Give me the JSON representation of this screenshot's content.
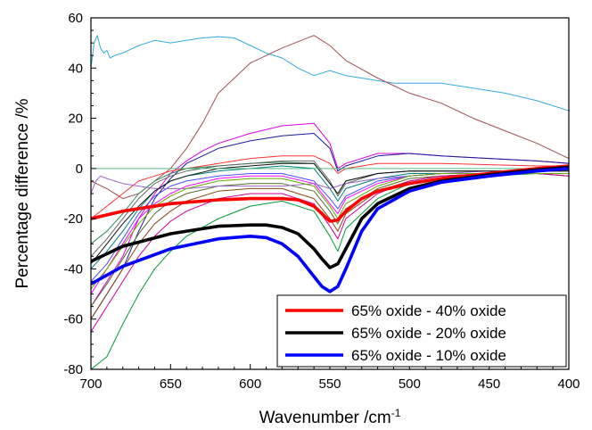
{
  "chart_data": {
    "type": "line",
    "xlabel": "Wavenumber /cm",
    "xlabel_sup": "-1",
    "ylabel": "Percentage difference /%",
    "xlim": [
      700,
      400
    ],
    "ylim": [
      -80,
      60
    ],
    "x_ticks": [
      700,
      650,
      600,
      550,
      500,
      450,
      400
    ],
    "y_ticks": [
      60,
      40,
      20,
      0,
      -20,
      -40,
      -60,
      -80
    ],
    "legend_position": "bottom-right",
    "series": [
      {
        "name": "65% oxide - 40% oxide",
        "color": "#ff0000",
        "emphasis": true,
        "x": [
          700,
          680,
          650,
          620,
          600,
          580,
          570,
          560,
          555,
          550,
          545,
          540,
          530,
          520,
          500,
          480,
          450,
          420,
          400
        ],
        "y": [
          -20,
          -17,
          -14,
          -12.5,
          -12,
          -12,
          -12.5,
          -15,
          -18,
          -21,
          -20.5,
          -17,
          -12,
          -9,
          -6,
          -4,
          -2,
          0,
          1
        ]
      },
      {
        "name": "65% oxide - 20% oxide",
        "color": "#000000",
        "emphasis": true,
        "x": [
          700,
          680,
          650,
          620,
          600,
          590,
          580,
          570,
          560,
          555,
          550,
          545,
          540,
          530,
          520,
          500,
          480,
          450,
          420,
          400
        ],
        "y": [
          -37,
          -31,
          -26,
          -23,
          -22.5,
          -22.5,
          -23.5,
          -26,
          -32,
          -36,
          -39.5,
          -38,
          -32,
          -20,
          -14,
          -8,
          -5,
          -2.5,
          -0.5,
          0.5
        ]
      },
      {
        "name": "65% oxide - 10% oxide",
        "color": "#0000ff",
        "emphasis": true,
        "x": [
          700,
          680,
          650,
          620,
          600,
          590,
          580,
          570,
          560,
          555,
          550,
          545,
          540,
          530,
          520,
          500,
          480,
          450,
          420,
          400
        ],
        "y": [
          -46,
          -39,
          -32,
          -28,
          -27,
          -27.5,
          -30,
          -35,
          -43,
          -47,
          -49,
          -47,
          -40,
          -25,
          -16,
          -9,
          -5.5,
          -3,
          -1,
          0
        ]
      },
      {
        "color": "#33aadd",
        "x": [
          700,
          698,
          696,
          694,
          692,
          690,
          688,
          685,
          680,
          670,
          660,
          650,
          640,
          630,
          620,
          610,
          600,
          590,
          580,
          570,
          560,
          550,
          540,
          530,
          520,
          510,
          500,
          490,
          480,
          470,
          460,
          450,
          440,
          420,
          400
        ],
        "y": [
          40,
          50,
          53,
          48,
          46,
          47,
          44,
          45,
          46,
          49,
          51,
          50,
          51,
          52,
          52.5,
          52,
          49,
          46,
          44,
          40,
          37,
          39,
          37,
          36,
          35,
          34,
          34,
          34,
          34,
          33,
          32,
          31,
          30,
          27,
          23
        ]
      },
      {
        "color": "#a05050",
        "x": [
          700,
          690,
          680,
          670,
          660,
          650,
          640,
          630,
          620,
          600,
          580,
          560,
          550,
          540,
          520,
          500,
          480,
          460,
          440,
          420,
          400
        ],
        "y": [
          -5,
          -8,
          -12,
          -10,
          -5,
          0,
          8,
          18,
          30,
          42,
          48,
          53,
          49,
          43,
          36,
          30,
          26,
          20,
          15,
          10,
          4
        ]
      },
      {
        "color": "#dd00dd",
        "x": [
          700,
          690,
          680,
          670,
          660,
          650,
          640,
          630,
          620,
          600,
          580,
          560,
          550,
          545,
          540,
          520,
          500,
          480,
          450,
          420,
          400
        ],
        "y": [
          -55,
          -45,
          -35,
          -20,
          -10,
          -2,
          3,
          7,
          10,
          14,
          17,
          18,
          10,
          0,
          2,
          6,
          6,
          5,
          4,
          3,
          2
        ]
      },
      {
        "color": "#1a1a99",
        "x": [
          700,
          690,
          680,
          670,
          660,
          650,
          640,
          630,
          620,
          600,
          580,
          560,
          550,
          545,
          540,
          520,
          500,
          480,
          450,
          420,
          400
        ],
        "y": [
          -60,
          -50,
          -40,
          -25,
          -12,
          -4,
          2,
          5,
          8,
          11,
          13,
          14,
          8,
          -1,
          1,
          5,
          6,
          5,
          4,
          3,
          2
        ]
      },
      {
        "color": "#ff3333",
        "x": [
          700,
          690,
          680,
          670,
          660,
          650,
          640,
          620,
          600,
          580,
          560,
          550,
          545,
          540,
          520,
          500,
          480,
          450,
          420,
          400
        ],
        "y": [
          -20,
          -15,
          -10,
          -5,
          -3,
          -1,
          0,
          2,
          4,
          5,
          5,
          2,
          -2,
          0,
          2,
          2,
          2,
          1.5,
          1,
          1
        ]
      },
      {
        "color": "#2e8b57",
        "x": [
          700,
          690,
          680,
          670,
          660,
          650,
          640,
          620,
          600,
          580,
          560,
          550,
          545,
          540,
          520,
          500,
          480,
          450,
          420,
          400
        ],
        "y": [
          -30,
          -25,
          -18,
          -10,
          -5,
          -2,
          0,
          1,
          2,
          2.5,
          2,
          -6,
          -10,
          -5,
          -2,
          -1,
          -1,
          -1,
          -1,
          -1
        ]
      },
      {
        "color": "#666666",
        "x": [
          700,
          690,
          680,
          670,
          660,
          650,
          640,
          620,
          600,
          580,
          560,
          550,
          545,
          540,
          520,
          500,
          480,
          450,
          420,
          400
        ],
        "y": [
          -35,
          -28,
          -20,
          -12,
          -6,
          -3,
          -1,
          1,
          2,
          3,
          3,
          -5,
          -11,
          -6,
          -2,
          -1,
          -1,
          -1,
          -1,
          -1
        ]
      },
      {
        "color": "#008080",
        "x": [
          700,
          690,
          680,
          670,
          660,
          650,
          640,
          620,
          600,
          580,
          560,
          550,
          545,
          540,
          520,
          500,
          480,
          450,
          420,
          400
        ],
        "y": [
          -40,
          -33,
          -25,
          -16,
          -9,
          -5,
          -3,
          -1,
          0,
          1,
          0,
          -8,
          -13,
          -8,
          -4,
          -2,
          -2,
          -2,
          -2,
          -2
        ]
      },
      {
        "color": "#ff00ff",
        "x": [
          700,
          690,
          680,
          670,
          660,
          650,
          640,
          620,
          600,
          580,
          560,
          550,
          545,
          540,
          520,
          500,
          480,
          450,
          420,
          400
        ],
        "y": [
          -50,
          -40,
          -30,
          -20,
          -14,
          -10,
          -7,
          -4,
          -3,
          -3,
          -6,
          -14,
          -18,
          -12,
          -6,
          -3,
          -2,
          -2,
          -2,
          -3
        ]
      },
      {
        "color": "#4d4dff",
        "x": [
          700,
          690,
          680,
          670,
          660,
          650,
          640,
          620,
          600,
          580,
          560,
          550,
          545,
          540,
          520,
          500,
          480,
          450,
          420,
          400
        ],
        "y": [
          -45,
          -38,
          -28,
          -18,
          -11,
          -7,
          -5,
          -3,
          -2,
          -2,
          -5,
          -12,
          -16,
          -11,
          -5,
          -3,
          -2,
          -2,
          -2,
          -2
        ]
      },
      {
        "color": "#556b2f",
        "x": [
          700,
          690,
          680,
          670,
          660,
          650,
          640,
          620,
          600,
          580,
          560,
          550,
          545,
          540,
          520,
          500,
          480,
          450,
          420,
          400
        ],
        "y": [
          -55,
          -46,
          -36,
          -26,
          -18,
          -13,
          -10,
          -7,
          -6,
          -6,
          -9,
          -17,
          -22,
          -16,
          -8,
          -4,
          -3,
          -2,
          -2,
          -3
        ]
      },
      {
        "color": "#8b4513",
        "x": [
          700,
          690,
          680,
          670,
          660,
          650,
          640,
          620,
          600,
          580,
          560,
          550,
          545,
          540,
          520,
          500,
          480,
          450,
          420,
          400
        ],
        "y": [
          -60,
          -50,
          -40,
          -30,
          -22,
          -17,
          -13,
          -9,
          -8,
          -8,
          -12,
          -20,
          -25,
          -18,
          -9,
          -5,
          -3,
          -2,
          -2,
          -2
        ]
      },
      {
        "color": "#cc0099",
        "x": [
          700,
          690,
          680,
          670,
          660,
          650,
          640,
          620,
          600,
          580,
          560,
          550,
          545,
          540,
          520,
          500,
          480,
          450,
          420,
          400
        ],
        "y": [
          -65,
          -55,
          -45,
          -35,
          -27,
          -21,
          -17,
          -12,
          -10,
          -10,
          -14,
          -23,
          -28,
          -20,
          -10,
          -5,
          -3,
          -2,
          -2,
          -3
        ]
      },
      {
        "color": "#009933",
        "x": [
          700,
          690,
          680,
          670,
          660,
          650,
          640,
          620,
          600,
          580,
          560,
          550,
          545,
          540,
          520,
          500,
          480,
          450,
          420,
          400
        ],
        "y": [
          -80,
          -75,
          -62,
          -50,
          -40,
          -33,
          -27,
          -20,
          -15,
          -13,
          -17,
          -27,
          -33,
          -24,
          -12,
          -6,
          -4,
          -3,
          -2,
          -2
        ]
      },
      {
        "color": "#9966cc",
        "x": [
          700,
          697,
          694,
          690,
          680,
          670,
          660,
          650,
          640,
          620,
          600,
          580,
          560,
          550,
          540,
          520,
          500,
          480,
          450,
          420,
          400
        ],
        "y": [
          -10,
          -5,
          -3,
          -4,
          -6,
          -7,
          -8,
          -8,
          -8,
          -7,
          -7,
          -7,
          -6,
          -8,
          -6,
          -4,
          -3,
          -2,
          -1,
          -1,
          0
        ]
      },
      {
        "color": "#111111",
        "x": [
          700,
          690,
          680,
          670,
          660,
          650,
          640,
          620,
          600,
          580,
          560,
          550,
          545,
          540,
          520,
          500,
          480,
          450,
          420,
          400
        ],
        "y": [
          -38,
          -30,
          -22,
          -15,
          -9,
          -5,
          -3,
          0,
          1,
          2,
          2,
          -6,
          -10,
          -5,
          -2,
          -1,
          -1,
          -1,
          -1,
          -1
        ]
      },
      {
        "color": "#66aa00",
        "x": [
          700,
          690,
          680,
          670,
          660,
          650,
          640,
          620,
          600,
          580,
          560,
          550,
          545,
          540,
          520,
          500,
          480,
          450,
          420,
          400
        ],
        "y": [
          -48,
          -40,
          -31,
          -22,
          -15,
          -11,
          -8,
          -5,
          -4,
          -4,
          -7,
          -15,
          -20,
          -14,
          -7,
          -3,
          -2,
          -2,
          -2,
          -2
        ]
      },
      {
        "color": "#3cb371",
        "flat": true,
        "x": [
          700,
          400
        ],
        "y": [
          0,
          0
        ]
      }
    ]
  }
}
